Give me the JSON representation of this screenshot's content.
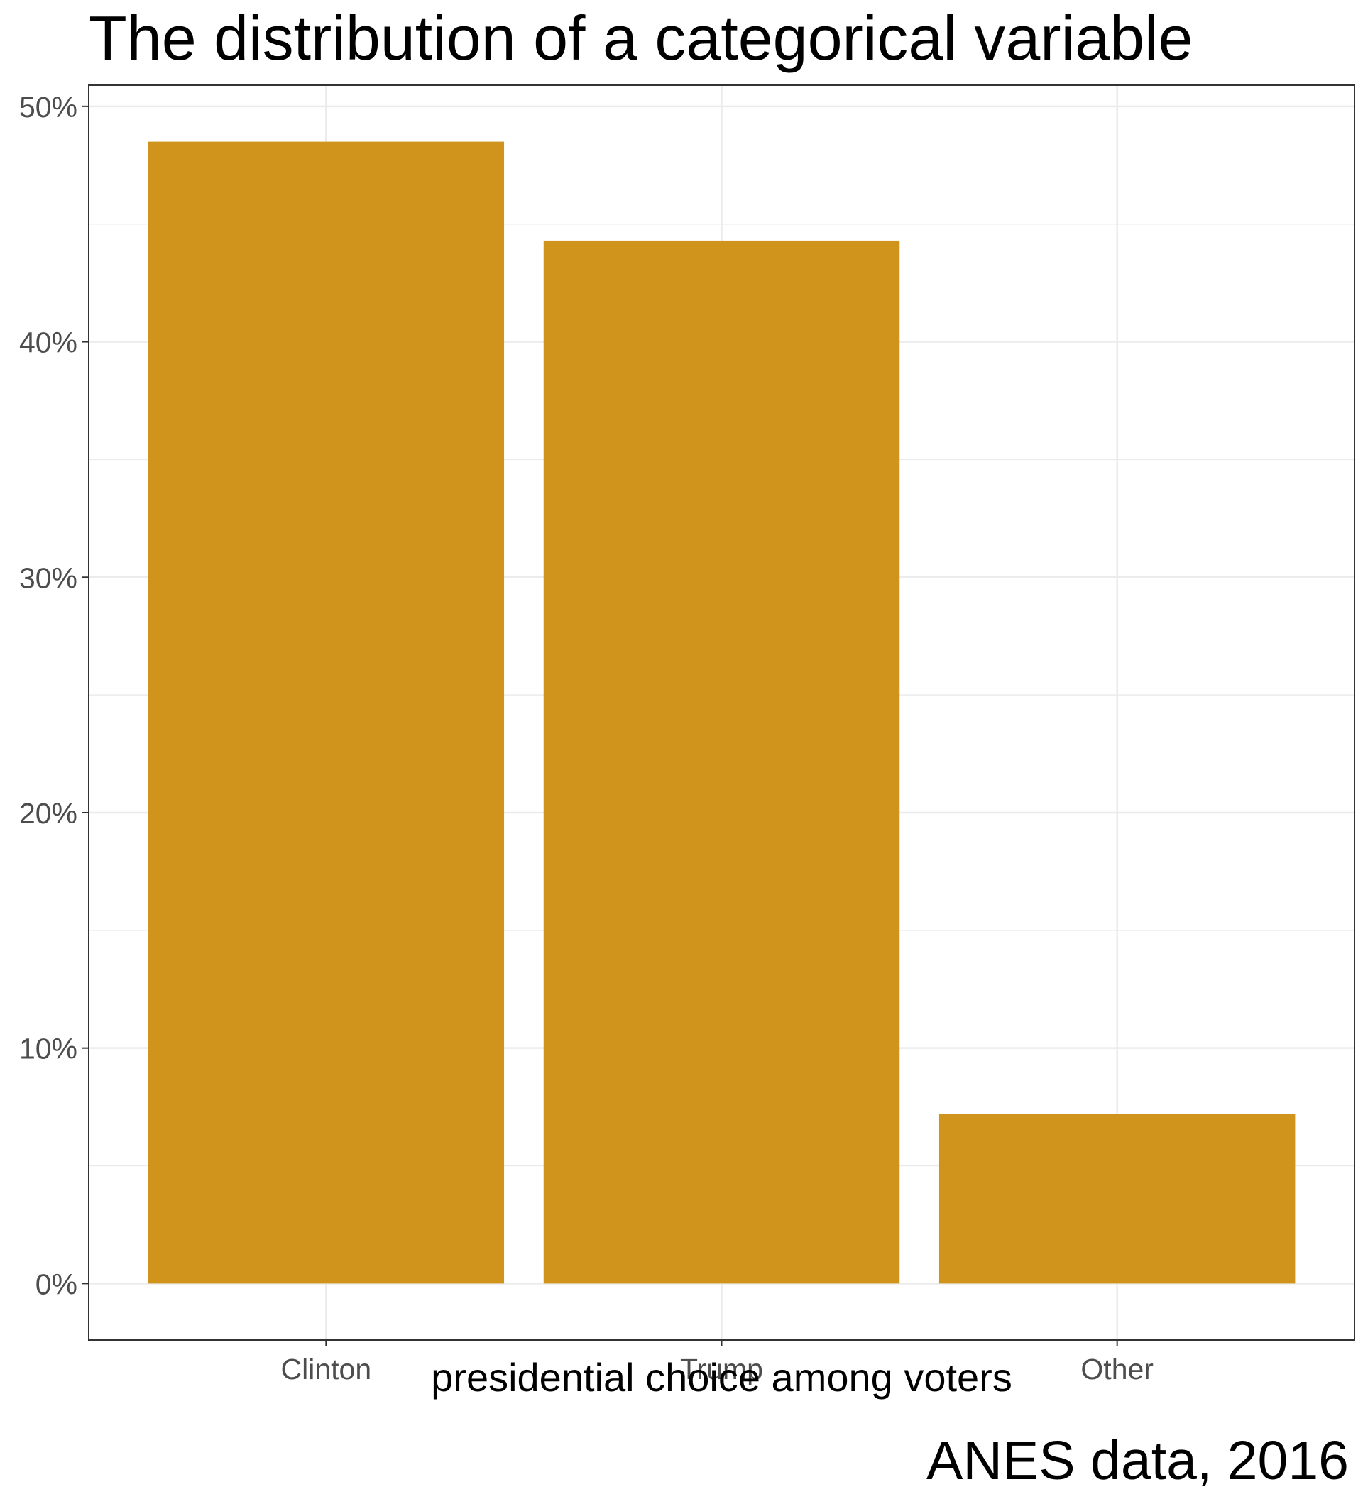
{
  "chart_data": {
    "type": "bar",
    "title": "The distribution of a categorical variable",
    "xlabel": "presidential choice among voters",
    "ylabel": "",
    "caption": "ANES data, 2016",
    "categories": [
      "Clinton",
      "Trump",
      "Other"
    ],
    "values": [
      48.5,
      44.3,
      7.2
    ],
    "ylim": [
      -2.4,
      50.9
    ],
    "y_ticks": [
      0,
      10,
      20,
      30,
      40,
      50
    ],
    "y_tick_labels": [
      "0%",
      "10%",
      "20%",
      "30%",
      "40%",
      "50%"
    ],
    "grid": true,
    "legend": "none",
    "colors": {
      "bar": "#D0941C",
      "grid": "#EBEBEB",
      "border": "#333333",
      "tick_text": "#4D4D4D"
    }
  }
}
